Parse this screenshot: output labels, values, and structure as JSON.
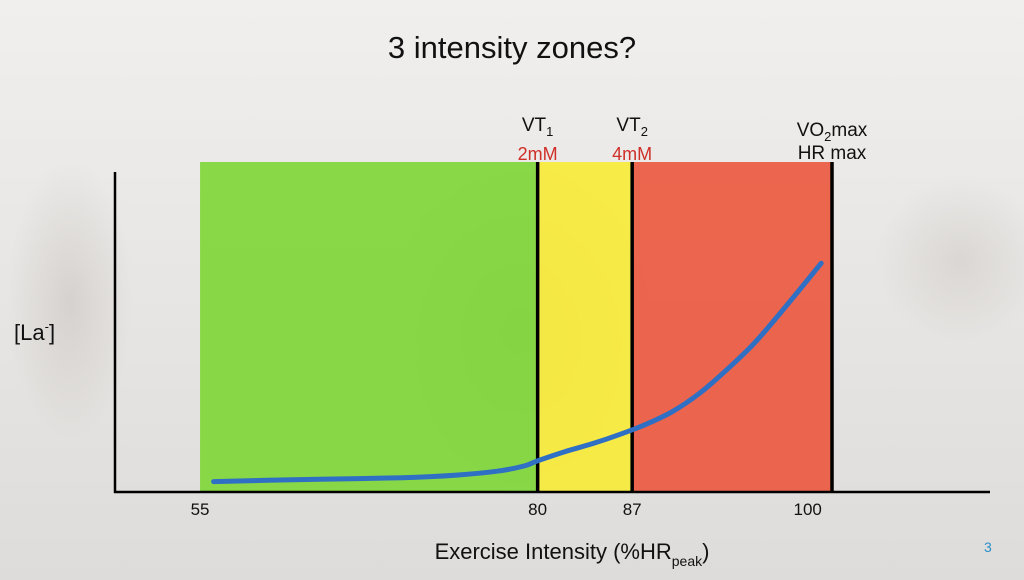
{
  "slide": {
    "title": "3 intensity zones?",
    "page_number": "3"
  },
  "chart_data": {
    "type": "line",
    "title": "3 intensity zones?",
    "xlabel": "Exercise Intensity (%HR",
    "xlabel_sub": "peak",
    "xlabel_end": ")",
    "ylabel": "[La",
    "ylabel_sup": "-",
    "ylabel_end": "]",
    "x_ticks": [
      "55",
      "80",
      "87",
      "100"
    ],
    "xlim": [
      48.7,
      113.5
    ],
    "zones": [
      {
        "from": 55,
        "to": 80,
        "color": "#7fd63a"
      },
      {
        "from": 80,
        "to": 87,
        "color": "#f7ea3a"
      },
      {
        "from": 87,
        "to": 101.8,
        "color": "#ec5a41"
      }
    ],
    "thresholds": [
      {
        "x": 80,
        "label": "VT",
        "sub": "1",
        "value": "2mM",
        "value_color": "#cf2f28"
      },
      {
        "x": 87,
        "label": "VT",
        "sub": "2",
        "value": "4mM",
        "value_color": "#cf2f28"
      },
      {
        "x": 101.8,
        "label_line1": "VO",
        "label_line1_sub": "2",
        "label_line1_end": "max",
        "label_line2": "HR max"
      }
    ],
    "series": [
      {
        "color": "#2f6fc4",
        "x": [
          56,
          60,
          65,
          70,
          74,
          77,
          79,
          80,
          82,
          84,
          86,
          88,
          90,
          92,
          94,
          96,
          98,
          101
        ],
        "y": [
          0.04,
          0.045,
          0.05,
          0.055,
          0.065,
          0.08,
          0.1,
          0.12,
          0.155,
          0.185,
          0.22,
          0.26,
          0.31,
          0.38,
          0.47,
          0.57,
          0.69,
          0.88
        ]
      }
    ],
    "ylim": [
      0,
      1
    ],
    "grid": false,
    "legend": "none"
  }
}
